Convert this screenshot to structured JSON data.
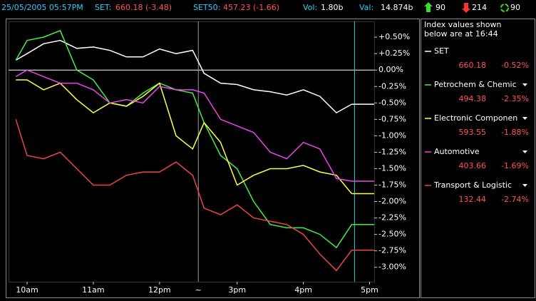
{
  "header": {
    "datetime": "25/05/2005 05:57PM",
    "set_label": "SET:",
    "set_value": "660.18 (-3.48)",
    "set50_label": "SET50:",
    "set50_value": "457.23 (-1.66)",
    "vol_label": "Vol:",
    "vol_value": "1.80b",
    "val_label": "Val:",
    "val_value": "14.874b",
    "up_count": "90",
    "down_count": "214",
    "unchanged_count": "90"
  },
  "panel_title": [
    "Index values shown",
    "below are at 16:44"
  ],
  "chart_data": {
    "type": "line",
    "x": [
      9.83,
      10,
      10.25,
      10.5,
      10.75,
      11,
      11.25,
      11.5,
      11.75,
      12,
      12.25,
      12.5,
      14.5,
      14.75,
      15,
      15.25,
      15.5,
      15.75,
      16,
      16.25,
      16.5,
      16.73
    ],
    "x_break": {
      "from": 12.5,
      "to": 14.5,
      "label": "~"
    },
    "xlim": [
      9.72,
      17.07
    ],
    "xticks": [
      {
        "value": 10,
        "label": "10am"
      },
      {
        "value": 11,
        "label": "11am"
      },
      {
        "value": 12,
        "label": "12pm"
      },
      {
        "value": 15,
        "label": "3pm"
      },
      {
        "value": 16,
        "label": "4pm"
      },
      {
        "value": 17,
        "label": "5pm"
      }
    ],
    "ylim": [
      -3.22,
      0.74
    ],
    "yticks": [
      {
        "value": 0.5,
        "label": "+0.50%"
      },
      {
        "value": 0.25,
        "label": "+0.25%"
      },
      {
        "value": 0,
        "label": "0.00%"
      },
      {
        "value": -0.25,
        "label": "-0.25%"
      },
      {
        "value": -0.5,
        "label": "-0.50%"
      },
      {
        "value": -0.75,
        "label": "-0.75%"
      },
      {
        "value": -1,
        "label": "-1.00%"
      },
      {
        "value": -1.25,
        "label": "-1.25%"
      },
      {
        "value": -1.5,
        "label": "-1.50%"
      },
      {
        "value": -1.75,
        "label": "-1.75%"
      },
      {
        "value": -2,
        "label": "-2.00%"
      },
      {
        "value": -2.25,
        "label": "-2.25%"
      },
      {
        "value": -2.5,
        "label": "-2.50%"
      },
      {
        "value": -2.75,
        "label": "-2.75%"
      },
      {
        "value": -3,
        "label": "-3.00%"
      }
    ],
    "zero_line": true,
    "series": [
      {
        "name": "SET",
        "color": "#ffffff",
        "last": "660.18",
        "change": "-0.52%",
        "values": [
          0.15,
          0.25,
          0.4,
          0.45,
          0.33,
          0.35,
          0.3,
          0.2,
          0.2,
          0.32,
          0.25,
          0.3,
          -0.05,
          -0.2,
          -0.22,
          -0.3,
          -0.33,
          -0.38,
          -0.3,
          -0.4,
          -0.65,
          -0.52
        ]
      },
      {
        "name": "Petrochem & Chemic",
        "color": "#44ee44",
        "last": "494.38",
        "change": "-2.35%",
        "values": [
          0.15,
          0.45,
          0.5,
          0.6,
          0.0,
          -0.15,
          -0.5,
          -0.55,
          -0.35,
          -0.2,
          -0.3,
          -0.35,
          -0.8,
          -1.3,
          -1.5,
          -2.0,
          -2.35,
          -2.4,
          -2.4,
          -2.5,
          -2.7,
          -2.35
        ]
      },
      {
        "name": "Electronic Componen",
        "color": "#ffff44",
        "last": "593.55",
        "change": "-1.88%",
        "values": [
          -0.15,
          -0.15,
          -0.3,
          -0.2,
          -0.45,
          -0.65,
          -0.5,
          -0.55,
          -0.4,
          -0.2,
          -1.0,
          -1.2,
          -0.8,
          -1.1,
          -1.75,
          -1.6,
          -1.5,
          -1.5,
          -1.45,
          -1.55,
          -1.6,
          -1.88
        ]
      },
      {
        "name": "Automotive",
        "color": "#ee44ee",
        "last": "403.66",
        "change": "-1.69%",
        "values": [
          -0.1,
          0.0,
          -0.1,
          -0.2,
          -0.2,
          -0.3,
          -0.5,
          -0.45,
          -0.5,
          -0.25,
          -0.3,
          -0.3,
          -0.35,
          -0.75,
          -0.85,
          -0.95,
          -1.25,
          -1.35,
          -1.1,
          -1.2,
          -1.65,
          -1.69
        ]
      },
      {
        "name": "Transport & Logistic",
        "color": "#ee4444",
        "last": "132.44",
        "change": "-2.74%",
        "values": [
          -0.75,
          -1.3,
          -1.35,
          -1.25,
          -1.5,
          -1.75,
          -1.75,
          -1.6,
          -1.55,
          -1.55,
          -1.4,
          -1.6,
          -2.1,
          -2.2,
          -2.05,
          -2.25,
          -2.3,
          -2.35,
          -2.5,
          -2.8,
          -3.05,
          -2.74
        ]
      }
    ]
  }
}
